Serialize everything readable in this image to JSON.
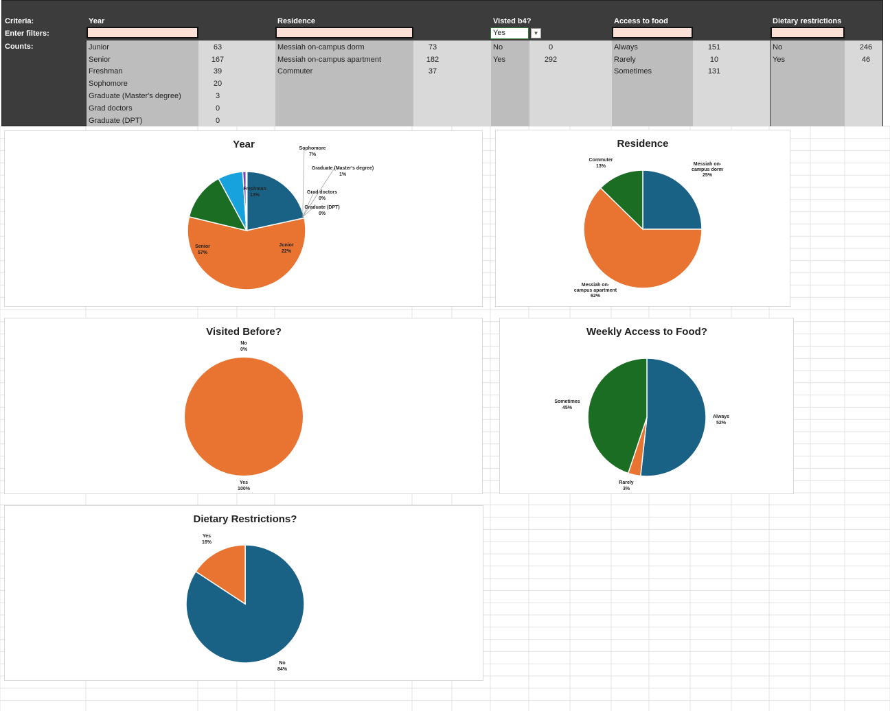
{
  "criteria": {
    "criteria_label": "Criteria:",
    "filters_label": "Enter filters:",
    "counts_label": "Counts:",
    "columns": [
      {
        "header": "Year",
        "filter": "",
        "items": [
          {
            "label": "Junior",
            "count": "63"
          },
          {
            "label": "Senior",
            "count": "167"
          },
          {
            "label": "Freshman",
            "count": "39"
          },
          {
            "label": "Sophomore",
            "count": "20"
          },
          {
            "label": "Graduate (Master's degree)",
            "count": "3"
          },
          {
            "label": "Grad doctors",
            "count": "0"
          },
          {
            "label": "Graduate (DPT)",
            "count": "0"
          }
        ]
      },
      {
        "header": "Residence",
        "filter": "",
        "items": [
          {
            "label": "Messiah on-campus dorm",
            "count": "73"
          },
          {
            "label": "Messiah on-campus apartment",
            "count": "182"
          },
          {
            "label": "Commuter",
            "count": "37"
          }
        ]
      },
      {
        "header": "Visted b4?",
        "filter": "Yes",
        "items": [
          {
            "label": "No",
            "count": "0"
          },
          {
            "label": "Yes",
            "count": "292"
          }
        ]
      },
      {
        "header": "Access to food",
        "filter": "",
        "items": [
          {
            "label": "Always",
            "count": "151"
          },
          {
            "label": "Rarely",
            "count": "10"
          },
          {
            "label": "Sometimes",
            "count": "131"
          }
        ]
      },
      {
        "header": "Dietary restrictions",
        "filter": "",
        "items": [
          {
            "label": "No",
            "count": "246"
          },
          {
            "label": "Yes",
            "count": "46"
          }
        ]
      }
    ]
  },
  "colors": {
    "blue": "#1a6285",
    "orange": "#e97432",
    "green": "#1b6d23",
    "lightblue": "#18a2dd",
    "purple": "#7a3fb0",
    "pink": "#d63d96",
    "panel": "#3c3c3c",
    "filter": "#fde1d6"
  },
  "chart_data": [
    {
      "type": "pie",
      "title": "Year",
      "categories": [
        "Junior",
        "Senior",
        "Freshman",
        "Sophomore",
        "Graduate (Master's degree)",
        "Grad doctors",
        "Graduate (DPT)"
      ],
      "values": [
        63,
        167,
        39,
        20,
        3,
        0,
        0
      ],
      "labels": [
        {
          "name": "Junior",
          "pct": "22%"
        },
        {
          "name": "Senior",
          "pct": "57%"
        },
        {
          "name": "Freshman",
          "pct": "13%"
        },
        {
          "name": "Sophomore",
          "pct": "7%"
        },
        {
          "name": "Graduate (Master's degree)",
          "pct": "1%"
        },
        {
          "name": "Grad doctors",
          "pct": "0%"
        },
        {
          "name": "Graduate (DPT)",
          "pct": "0%"
        }
      ]
    },
    {
      "type": "pie",
      "title": "Residence",
      "categories": [
        "Messiah on-campus dorm",
        "Messiah on-campus apartment",
        "Commuter"
      ],
      "values": [
        73,
        182,
        37
      ],
      "labels": [
        {
          "name": "Messiah on-campus dorm",
          "pct": "25%"
        },
        {
          "name": "Messiah on-campus apartment",
          "pct": "62%"
        },
        {
          "name": "Commuter",
          "pct": "13%"
        }
      ]
    },
    {
      "type": "pie",
      "title": "Visited Before?",
      "categories": [
        "No",
        "Yes"
      ],
      "values": [
        0,
        292
      ],
      "labels": [
        {
          "name": "No",
          "pct": "0%"
        },
        {
          "name": "Yes",
          "pct": "100%"
        }
      ]
    },
    {
      "type": "pie",
      "title": "Weekly Access to Food?",
      "categories": [
        "Always",
        "Rarely",
        "Sometimes"
      ],
      "values": [
        151,
        10,
        131
      ],
      "labels": [
        {
          "name": "Always",
          "pct": "52%"
        },
        {
          "name": "Rarely",
          "pct": "3%"
        },
        {
          "name": "Sometimes",
          "pct": "45%"
        }
      ]
    },
    {
      "type": "pie",
      "title": "Dietary Restrictions?",
      "categories": [
        "No",
        "Yes"
      ],
      "values": [
        246,
        46
      ],
      "labels": [
        {
          "name": "No",
          "pct": "84%"
        },
        {
          "name": "Yes",
          "pct": "16%"
        }
      ]
    }
  ]
}
